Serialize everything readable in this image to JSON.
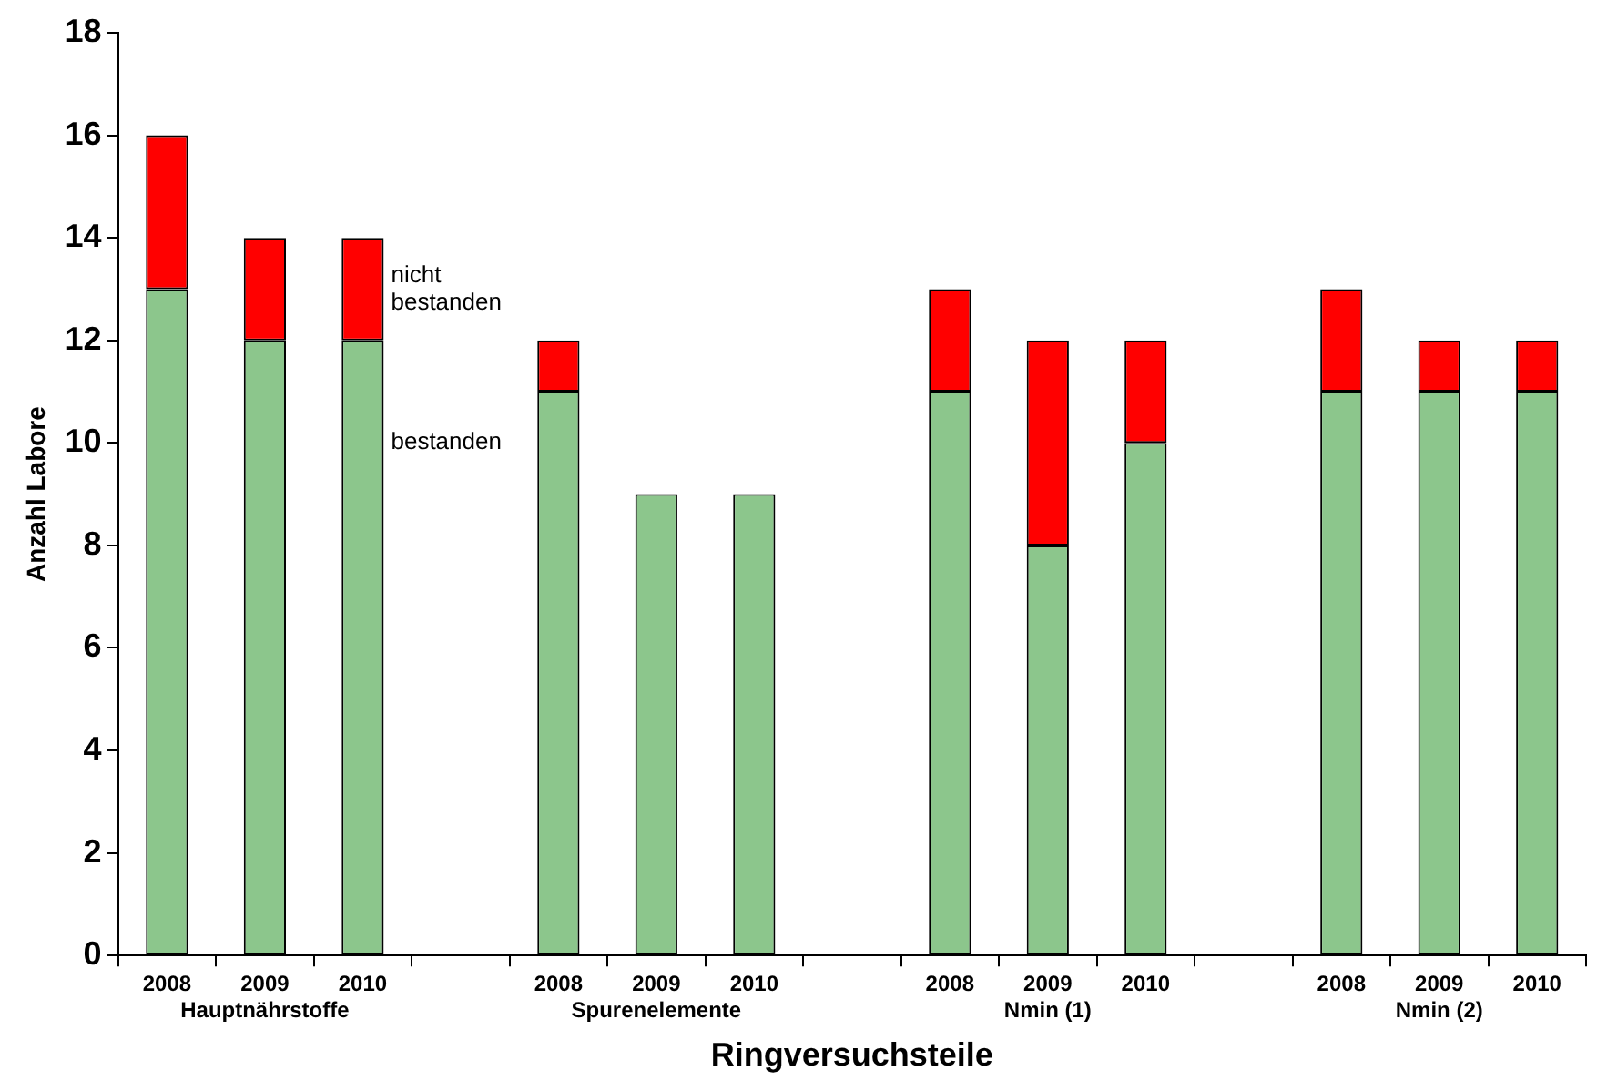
{
  "chart_data": {
    "type": "bar",
    "stacked": true,
    "xlabel": "Ringversuchsteile",
    "ylabel": "Anzahl Labore",
    "categories": [
      "2008",
      "2009\nHauptnährstoffe",
      "2010",
      null,
      "2008",
      "2009\nSpurenelemente",
      "2010",
      null,
      "2008",
      "2009\nNmin (1)",
      "2010",
      null,
      "2008",
      "2009\nNmin (2)",
      "2010"
    ],
    "series": [
      {
        "name": "bestanden",
        "color": "#8cc68c",
        "values": [
          13,
          12,
          12,
          null,
          11,
          9,
          9,
          null,
          11,
          8,
          10,
          null,
          11,
          11,
          11
        ]
      },
      {
        "name": "nicht bestanden",
        "color": "#ff0000",
        "values": [
          3,
          2,
          2,
          null,
          1,
          null,
          null,
          null,
          2,
          4,
          2,
          null,
          2,
          1,
          1
        ]
      }
    ],
    "ylim": [
      0,
      18
    ],
    "yticks": [
      0,
      2,
      4,
      6,
      8,
      10,
      12,
      14,
      16,
      18
    ],
    "grid": false,
    "legend": false
  }
}
